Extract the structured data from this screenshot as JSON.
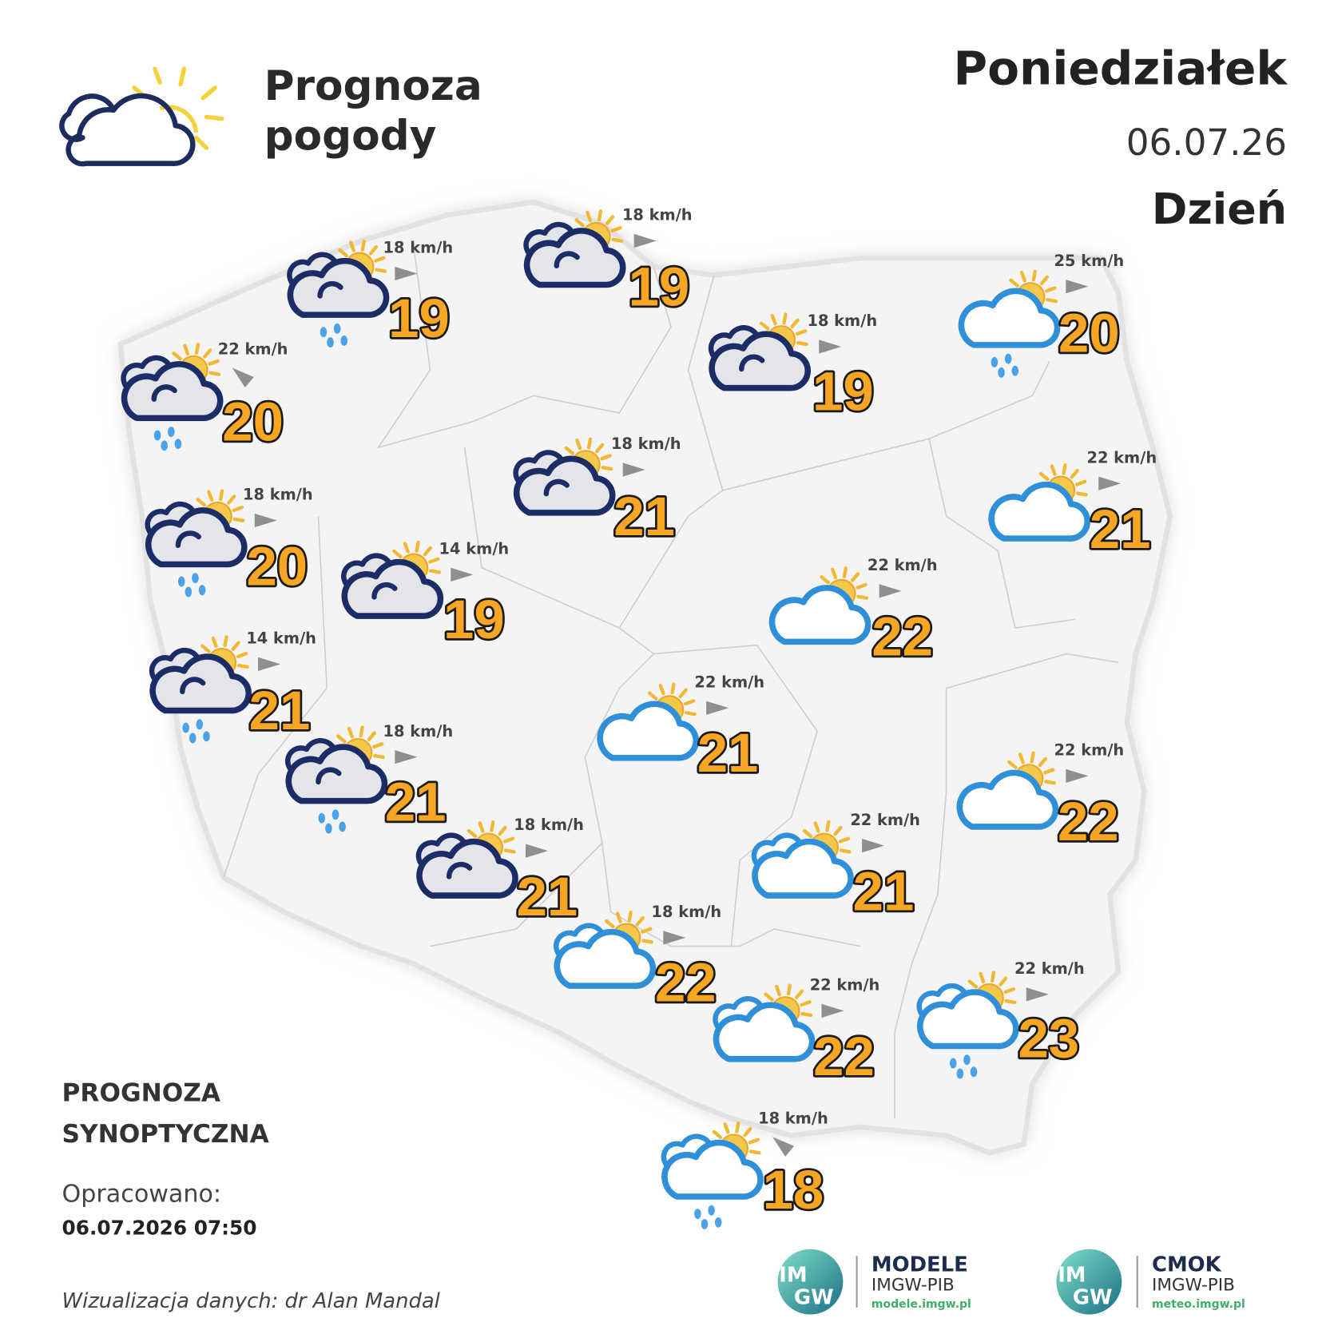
{
  "header": {
    "title": [
      "Prognoza",
      "pogody"
    ],
    "day": "Poniedziałek",
    "date": "06.07.26",
    "period": "Dzień"
  },
  "stations": [
    {
      "temperature": 19,
      "wind": "18 km/h",
      "wind_direction": "E",
      "icon": "dark-cloud-sun-rain"
    },
    {
      "temperature": 19,
      "wind": "18 km/h",
      "wind_direction": "E",
      "icon": "dark-cloud-sun"
    },
    {
      "temperature": 20,
      "wind": "25 km/h",
      "wind_direction": "E",
      "icon": "cloud-sun-rain"
    },
    {
      "temperature": 20,
      "wind": "22 km/h",
      "wind_direction": "NW",
      "icon": "dark-cloud-sun-rain"
    },
    {
      "temperature": 19,
      "wind": "18 km/h",
      "wind_direction": "E",
      "icon": "dark-cloud-sun"
    },
    {
      "temperature": 21,
      "wind": "18 km/h",
      "wind_direction": "E",
      "icon": "dark-cloud-sun"
    },
    {
      "temperature": 21,
      "wind": "22 km/h",
      "wind_direction": "E",
      "icon": "cloud-sun"
    },
    {
      "temperature": 20,
      "wind": "18 km/h",
      "wind_direction": "E",
      "icon": "dark-cloud-sun-rain"
    },
    {
      "temperature": 19,
      "wind": "14 km/h",
      "wind_direction": "E",
      "icon": "dark-cloud-sun"
    },
    {
      "temperature": 22,
      "wind": "22 km/h",
      "wind_direction": "E",
      "icon": "cloud-sun"
    },
    {
      "temperature": 21,
      "wind": "14 km/h",
      "wind_direction": "E",
      "icon": "dark-cloud-sun-rain"
    },
    {
      "temperature": 21,
      "wind": "22 km/h",
      "wind_direction": "E",
      "icon": "cloud-sun"
    },
    {
      "temperature": 22,
      "wind": "22 km/h",
      "wind_direction": "E",
      "icon": "cloud-sun"
    },
    {
      "temperature": 21,
      "wind": "18 km/h",
      "wind_direction": "E",
      "icon": "dark-cloud-sun-rain"
    },
    {
      "temperature": 21,
      "wind": "22 km/h",
      "wind_direction": "E",
      "icon": "clouds-sun"
    },
    {
      "temperature": 21,
      "wind": "18 km/h",
      "wind_direction": "E",
      "icon": "dark-cloud-sun"
    },
    {
      "temperature": 22,
      "wind": "18 km/h",
      "wind_direction": "E",
      "icon": "clouds-sun"
    },
    {
      "temperature": 22,
      "wind": "22 km/h",
      "wind_direction": "E",
      "icon": "clouds-sun"
    },
    {
      "temperature": 23,
      "wind": "22 km/h",
      "wind_direction": "E",
      "icon": "clouds-sun-rain"
    },
    {
      "temperature": 18,
      "wind": "18 km/h",
      "wind_direction": "NW",
      "icon": "clouds-sun-rain"
    }
  ],
  "footer": {
    "heading": [
      "PROGNOZA",
      "SYNOPTYCZNA"
    ],
    "prepared_label": "Opracowano:",
    "prepared_at": "06.07.2026 07:50",
    "credit": "Wizualizacja danych: dr Alan Mandal"
  },
  "logos": [
    {
      "mark": [
        "IM",
        "GW"
      ],
      "name": "MODELE",
      "org": "IMGW-PIB",
      "url": "modele.imgw.pl"
    },
    {
      "mark": [
        "IM",
        "GW"
      ],
      "name": "CMOK",
      "org": "IMGW-PIB",
      "url": "meteo.imgw.pl"
    }
  ]
}
